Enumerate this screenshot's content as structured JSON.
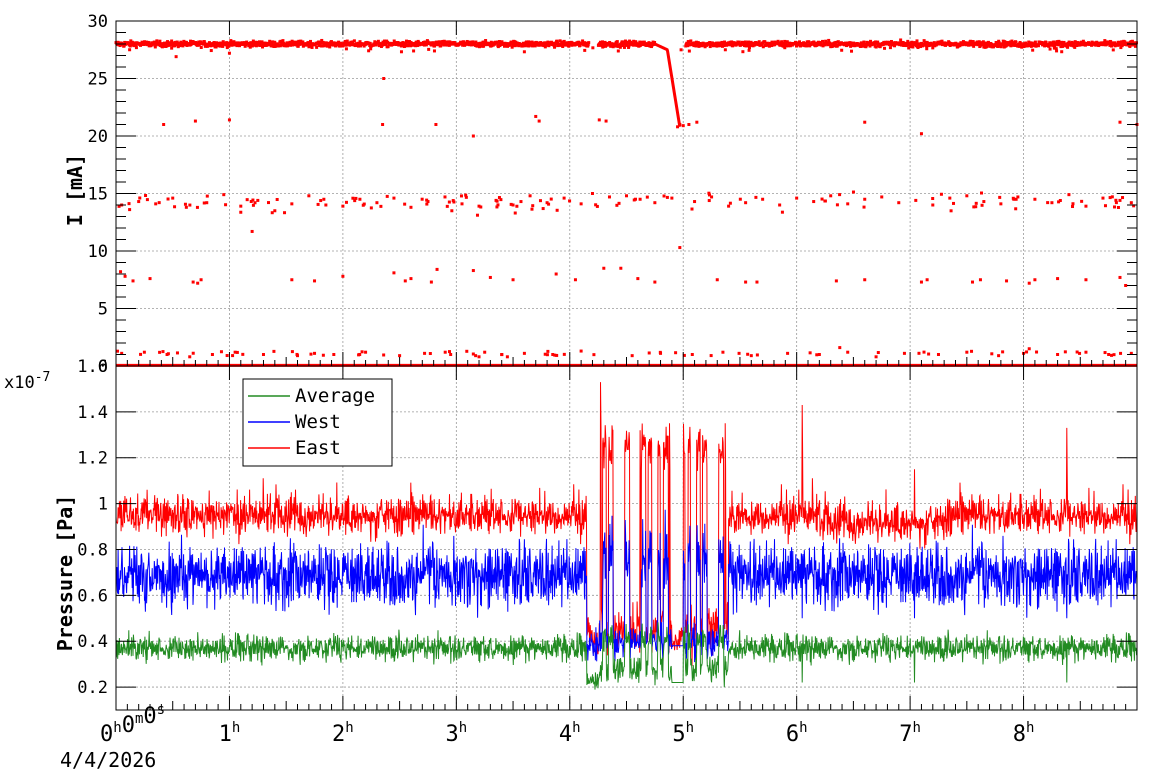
{
  "chart_data": [
    {
      "type": "scatter",
      "ylabel": "I [mA]",
      "xlim": [
        0,
        9.0
      ],
      "ylim": [
        0,
        30
      ],
      "yticks": [
        "0",
        "5",
        "10",
        "15",
        "20",
        "25",
        "30"
      ],
      "grid": true,
      "series": [
        {
          "color": "#ff0000",
          "points_x": [
            0.05,
            0.12,
            0.2,
            0.35,
            0.5,
            0.62,
            0.8,
            0.95,
            1.1,
            1.25,
            1.4,
            1.55,
            1.7,
            1.85,
            2.0,
            2.15,
            2.3,
            2.45,
            2.6,
            2.75,
            2.9,
            3.05,
            3.2,
            3.35,
            3.5,
            3.65,
            3.8,
            3.95,
            4.1,
            4.2,
            4.35,
            4.5,
            4.62,
            4.75,
            4.9,
            5.1,
            5.25,
            5.4,
            5.55,
            5.7,
            5.85,
            6.0,
            6.15,
            6.3,
            6.45,
            6.6,
            6.75,
            6.9,
            7.05,
            7.2,
            7.35,
            7.5,
            7.65,
            7.8,
            7.95,
            8.1,
            8.25,
            8.4,
            8.55,
            8.7,
            8.85,
            8.95,
            0.04,
            0.3,
            0.68,
            0.75,
            1.55,
            2.0,
            2.45,
            2.6,
            2.83,
            3.5,
            3.88,
            4.3,
            4.6,
            4.97,
            5.3,
            6.6,
            7.1,
            7.62,
            8.05,
            8.55,
            8.9,
            0.08,
            0.15,
            0.72,
            1.2,
            1.75,
            2.55,
            2.78,
            3.15,
            3.3,
            4.05,
            4.45,
            4.75,
            5.55,
            5.65,
            6.35,
            7.15,
            7.55,
            7.85,
            8.1,
            8.3,
            8.85,
            4.97,
            0.42,
            0.7,
            1.0,
            2.35,
            2.82,
            3.15,
            3.7,
            3.73,
            4.26,
            4.32,
            4.95,
            5.0,
            5.05,
            5.12,
            6.6,
            7.1,
            8.85,
            9.0,
            2.36,
            0.12,
            0.53,
            1.0,
            0.05,
            0.25,
            0.45,
            0.65,
            0.85,
            1.05,
            1.3,
            1.6,
            1.75,
            1.92,
            2.2,
            2.5,
            2.72,
            2.95,
            3.25,
            3.45,
            3.6,
            3.85,
            4.1,
            4.55,
            4.8,
            5.08,
            5.35,
            5.6,
            5.92,
            6.2,
            6.45,
            6.7,
            6.95,
            7.25,
            7.5,
            7.78,
            8.0,
            8.3,
            8.55,
            8.75,
            8.95,
            3.17,
            3.4,
            3.2,
            6.38,
            8.05
          ],
          "points_y": [
            14.0,
            13.6,
            14.3,
            14.1,
            14.6,
            13.8,
            14.2,
            14.9,
            13.9,
            14.4,
            13.5,
            14.1,
            14.8,
            14.0,
            13.9,
            14.5,
            14.2,
            14.6,
            13.8,
            14.3,
            14.7,
            14.1,
            13.9,
            14.4,
            14.0,
            14.8,
            14.2,
            14.6,
            14.1,
            15.0,
            14.7,
            14.8,
            14.5,
            14.2,
            14.6,
            14.3,
            14.7,
            13.9,
            14.2,
            14.5,
            14.0,
            14.6,
            14.3,
            14.8,
            14.1,
            14.5,
            14.7,
            14.2,
            14.4,
            14.0,
            14.6,
            14.8,
            14.3,
            14.1,
            14.7,
            14.5,
            14.2,
            14.9,
            13.9,
            14.6,
            14.4,
            14.2,
            8.2,
            7.6,
            7.3,
            7.5,
            7.5,
            7.8,
            8.1,
            7.6,
            8.4,
            7.5,
            8.0,
            8.5,
            7.6,
            10.3,
            7.5,
            7.5,
            7.3,
            7.5,
            7.2,
            7.5,
            7.0,
            7.8,
            7.4,
            7.2,
            11.7,
            7.4,
            7.4,
            7.3,
            8.3,
            7.7,
            7.5,
            8.5,
            7.3,
            7.3,
            7.3,
            7.4,
            7.5,
            7.3,
            7.4,
            7.5,
            7.6,
            7.7,
            21.0,
            21.0,
            21.3,
            21.4,
            21.0,
            21.0,
            20.0,
            21.7,
            21.3,
            21.4,
            21.3,
            20.8,
            20.9,
            21.0,
            21.2,
            21.2,
            20.2,
            21.2,
            21.0,
            25.0,
            27.5,
            26.9,
            27.2,
            1.1,
            1.2,
            1.0,
            0.8,
            1.0,
            1.2,
            1.0,
            0.9,
            1.1,
            1.0,
            1.2,
            0.9,
            1.1,
            1.0,
            1.2,
            0.8,
            1.1,
            1.0,
            1.3,
            0.9,
            1.1,
            1.0,
            1.2,
            0.9,
            1.1,
            1.0,
            1.2,
            0.8,
            1.1,
            1.0,
            1.2,
            0.9,
            1.1,
            1.0,
            1.2,
            1.0,
            1.1,
            0.9,
            1.0,
            0.8,
            1.6,
            1.5,
            26.3,
            26.9,
            27.0
          ],
          "baseline_y": 28.0,
          "baseline_gaps": [
            [
              4.17,
              4.25
            ],
            [
              4.97,
              5.02
            ]
          ],
          "dip": {
            "x": [
              4.75,
              4.87,
              4.92,
              4.97
            ],
            "y": [
              28.0,
              27.5,
              24.0,
              20.8
            ]
          }
        }
      ]
    },
    {
      "type": "line",
      "ylabel": "Pressure [Pa]",
      "y_exponent": "x10",
      "y_exponent_power": "-7",
      "xlim": [
        0,
        9.0
      ],
      "ylim": [
        0.1,
        1.6
      ],
      "yticks": [
        "0.2",
        "0.4",
        "0.6",
        "0.8",
        "1",
        "1.2",
        "1.4",
        "1.6"
      ],
      "grid": true,
      "legend": "top-left",
      "series": [
        {
          "name": "Average",
          "color": "#228b22",
          "base": 0.37,
          "noise": 0.05,
          "spike_y_min": 0.18
        },
        {
          "name": "West",
          "color": "#0000ff",
          "base": 0.69,
          "noise": 0.13,
          "spike_y_max": 0.96
        },
        {
          "name": "East",
          "color": "#ff0000",
          "base": 0.95,
          "noise": 0.07,
          "spike_y_max": 1.53
        }
      ],
      "disturbed_interval": [
        4.15,
        5.4
      ],
      "spikes": [
        {
          "x": 4.27,
          "y": 1.53
        },
        {
          "x": 4.62,
          "y": 1.32
        },
        {
          "x": 4.88,
          "y": 1.35
        },
        {
          "x": 5.37,
          "y": 1.35
        },
        {
          "x": 6.05,
          "y": 1.43
        },
        {
          "x": 7.04,
          "y": 1.15
        },
        {
          "x": 8.38,
          "y": 1.33
        }
      ]
    }
  ],
  "x_axis": {
    "ticks": [
      {
        "main": "0",
        "sup": "h",
        "main2": "0",
        "sup2": "m",
        "main3": "0",
        "sup3": "s"
      },
      {
        "main": "1",
        "sup": "h"
      },
      {
        "main": "2",
        "sup": "h"
      },
      {
        "main": "3",
        "sup": "h"
      },
      {
        "main": "4",
        "sup": "h"
      },
      {
        "main": "5",
        "sup": "h"
      },
      {
        "main": "6",
        "sup": "h"
      },
      {
        "main": "7",
        "sup": "h"
      },
      {
        "main": "8",
        "sup": "h"
      }
    ],
    "date": "4/4/2026"
  }
}
